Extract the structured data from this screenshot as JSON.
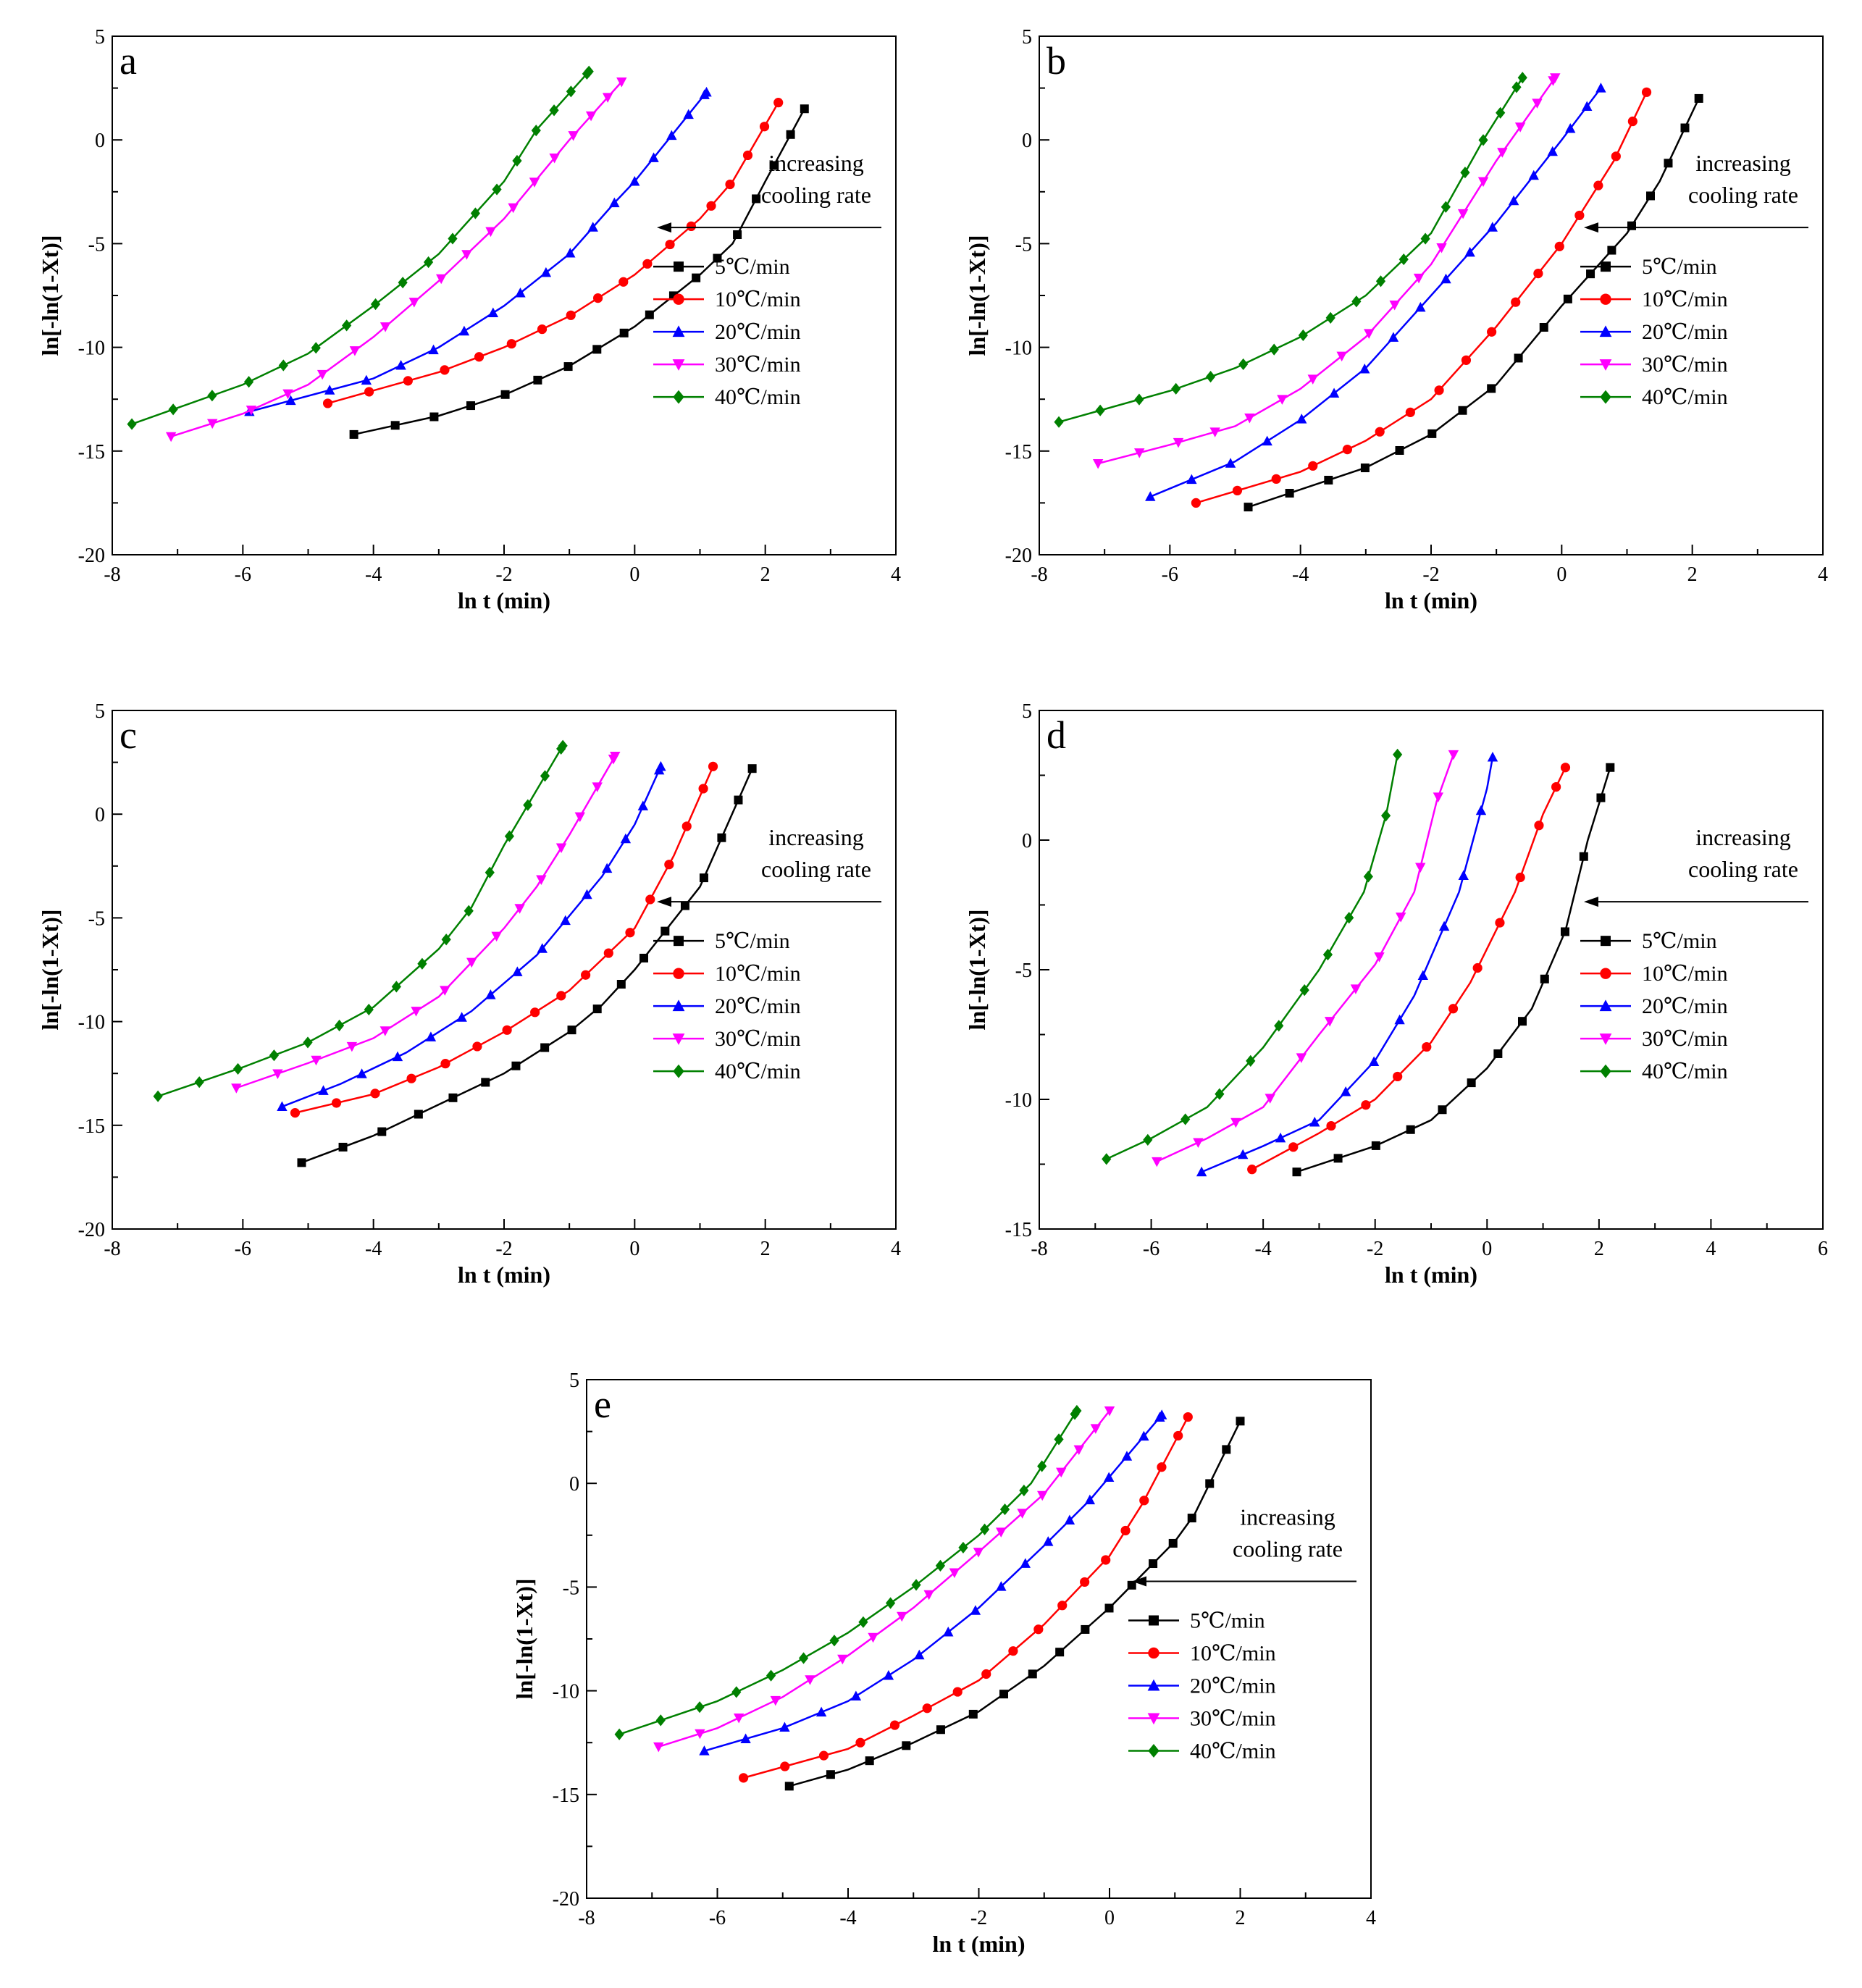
{
  "legend_labels": [
    "5℃/min",
    "10℃/min",
    "20℃/min",
    "30℃/min",
    "40℃/min"
  ],
  "annotation": [
    "increasing",
    "cooling rate"
  ],
  "colors": {
    "5": "#000000",
    "10": "#ff0000",
    "20": "#0000ff",
    "30": "#ff00ff",
    "40": "#008000"
  },
  "chart_data": [
    {
      "type": "scatter",
      "panel": "a",
      "xlabel": "ln t (min)",
      "ylabel": "ln[-ln(1-Xt)]",
      "xlim": [
        -8,
        4
      ],
      "ylim": [
        -20,
        5
      ],
      "xticks": [
        "-8",
        "-6",
        "-4",
        "-2",
        "0",
        "2",
        "4"
      ],
      "yticks": [
        "-20",
        "-15",
        "-10",
        "-5",
        "0",
        "5"
      ],
      "series": [
        {
          "name": "5℃/min",
          "marker": "square",
          "x": [
            -4.3,
            -3.0,
            -2.0,
            -1.0,
            0.0,
            1.0,
            1.5,
            2.0,
            2.6
          ],
          "y": [
            -14.2,
            -13.3,
            -12.3,
            -10.9,
            -9.0,
            -6.5,
            -5.0,
            -2.0,
            1.5
          ]
        },
        {
          "name": "10℃/min",
          "marker": "circle",
          "x": [
            -4.7,
            -3.0,
            -2.0,
            -1.0,
            0.0,
            1.0,
            1.5,
            2.2
          ],
          "y": [
            -12.7,
            -11.2,
            -10.0,
            -8.5,
            -6.5,
            -3.8,
            -2.0,
            1.8
          ]
        },
        {
          "name": "20℃/min",
          "marker": "triangle-up",
          "x": [
            -5.9,
            -4.0,
            -3.0,
            -2.0,
            -1.0,
            -0.3,
            0.0,
            1.1
          ],
          "y": [
            -13.1,
            -11.5,
            -10.0,
            -8.0,
            -5.5,
            -3.0,
            -2.0,
            2.3
          ]
        },
        {
          "name": "30℃/min",
          "marker": "triangle-down",
          "x": [
            -7.1,
            -6.0,
            -5.0,
            -4.0,
            -3.0,
            -2.0,
            -1.0,
            -0.2
          ],
          "y": [
            -14.3,
            -13.2,
            -11.8,
            -9.5,
            -6.8,
            -3.8,
            0.0,
            2.8
          ]
        },
        {
          "name": "40℃/min",
          "marker": "diamond",
          "x": [
            -7.7,
            -6.0,
            -5.0,
            -4.0,
            -3.0,
            -2.0,
            -1.5,
            -0.7
          ],
          "y": [
            -13.7,
            -11.8,
            -10.3,
            -8.0,
            -5.5,
            -2.0,
            0.5,
            3.3
          ]
        }
      ]
    },
    {
      "type": "scatter",
      "panel": "b",
      "xlabel": "ln t (min)",
      "ylabel": "ln[-ln(1-Xt)]",
      "xlim": [
        -8,
        4
      ],
      "ylim": [
        -20,
        5
      ],
      "xticks": [
        "-8",
        "-6",
        "-4",
        "-2",
        "0",
        "2",
        "4"
      ],
      "yticks": [
        "-20",
        "-15",
        "-10",
        "-5",
        "0",
        "5"
      ],
      "series": [
        {
          "name": "5℃/min",
          "marker": "square",
          "x": [
            -4.8,
            -3.0,
            -2.0,
            -1.0,
            0.0,
            1.0,
            1.5,
            2.1
          ],
          "y": [
            -17.7,
            -15.8,
            -14.2,
            -11.8,
            -8.0,
            -4.5,
            -2.0,
            2.0
          ]
        },
        {
          "name": "10℃/min",
          "marker": "circle",
          "x": [
            -5.6,
            -4.0,
            -3.0,
            -2.0,
            -1.0,
            0.0,
            0.8,
            1.3
          ],
          "y": [
            -17.5,
            -16.0,
            -14.5,
            -12.5,
            -9.0,
            -5.0,
            -1.0,
            2.3
          ]
        },
        {
          "name": "20℃/min",
          "marker": "triangle-up",
          "x": [
            -6.3,
            -5.0,
            -4.0,
            -3.0,
            -2.0,
            -1.0,
            0.0,
            0.6
          ],
          "y": [
            -17.2,
            -15.5,
            -13.5,
            -11.0,
            -7.5,
            -4.0,
            0.0,
            2.5
          ]
        },
        {
          "name": "30℃/min",
          "marker": "triangle-down",
          "x": [
            -7.1,
            -6.0,
            -5.0,
            -4.0,
            -3.0,
            -2.0,
            -1.0,
            -0.1
          ],
          "y": [
            -15.6,
            -14.7,
            -13.8,
            -12.0,
            -9.5,
            -6.0,
            -1.0,
            3.0
          ]
        },
        {
          "name": "40℃/min",
          "marker": "diamond",
          "x": [
            -7.7,
            -6.0,
            -5.0,
            -4.0,
            -3.0,
            -2.0,
            -1.2,
            -0.6
          ],
          "y": [
            -13.6,
            -12.1,
            -11.0,
            -9.5,
            -7.5,
            -4.5,
            0.0,
            3.0
          ]
        }
      ]
    },
    {
      "type": "scatter",
      "panel": "c",
      "xlabel": "ln t (min)",
      "ylabel": "ln[-ln(1-Xt)]",
      "xlim": [
        -8,
        4
      ],
      "ylim": [
        -20,
        5
      ],
      "xticks": [
        "-8",
        "-6",
        "-4",
        "-2",
        "0",
        "2",
        "4"
      ],
      "yticks": [
        "-20",
        "-15",
        "-10",
        "-5",
        "0",
        "5"
      ],
      "series": [
        {
          "name": "5℃/min",
          "marker": "square",
          "x": [
            -5.1,
            -4.0,
            -3.0,
            -2.0,
            -1.0,
            -0.5,
            0.0,
            1.0,
            1.8
          ],
          "y": [
            -16.8,
            -15.5,
            -14.0,
            -12.5,
            -10.5,
            -9.2,
            -7.5,
            -3.5,
            2.2
          ]
        },
        {
          "name": "10℃/min",
          "marker": "circle",
          "x": [
            -5.2,
            -4.0,
            -3.0,
            -2.0,
            -1.0,
            0.0,
            0.6,
            1.2
          ],
          "y": [
            -14.4,
            -13.5,
            -12.2,
            -10.5,
            -8.5,
            -5.5,
            -2.0,
            2.3
          ]
        },
        {
          "name": "20℃/min",
          "marker": "triangle-up",
          "x": [
            -5.4,
            -4.5,
            -3.5,
            -2.5,
            -1.5,
            -0.5,
            0.0,
            0.4
          ],
          "y": [
            -14.1,
            -13.0,
            -11.5,
            -9.5,
            -6.8,
            -3.0,
            -0.5,
            2.3
          ]
        },
        {
          "name": "30℃/min",
          "marker": "triangle-down",
          "x": [
            -6.1,
            -5.0,
            -4.0,
            -3.0,
            -2.0,
            -1.5,
            -1.0,
            -0.3
          ],
          "y": [
            -13.2,
            -12.0,
            -10.8,
            -8.8,
            -5.5,
            -3.5,
            -1.0,
            2.8
          ]
        },
        {
          "name": "40℃/min",
          "marker": "diamond",
          "x": [
            -7.3,
            -6.0,
            -5.0,
            -4.0,
            -3.0,
            -2.5,
            -2.0,
            -1.1
          ],
          "y": [
            -13.6,
            -12.2,
            -11.0,
            -9.3,
            -6.5,
            -4.5,
            -1.5,
            3.3
          ]
        }
      ]
    },
    {
      "type": "scatter",
      "panel": "d",
      "xlabel": "ln t (min)",
      "ylabel": "ln[-ln(1-Xt)]",
      "xlim": [
        -8,
        6
      ],
      "ylim": [
        -15,
        5
      ],
      "xticks": [
        "-8",
        "-6",
        "-4",
        "-2",
        "0",
        "2",
        "4",
        "6"
      ],
      "yticks": [
        "-15",
        "-10",
        "-5",
        "0",
        "5"
      ],
      "series": [
        {
          "name": "5℃/min",
          "marker": "square",
          "x": [
            -3.4,
            -2.0,
            -1.0,
            0.0,
            0.8,
            1.4,
            1.8,
            2.2
          ],
          "y": [
            -12.8,
            -11.8,
            -10.8,
            -8.8,
            -6.5,
            -3.5,
            0.0,
            2.8
          ]
        },
        {
          "name": "10℃/min",
          "marker": "circle",
          "x": [
            -4.2,
            -3.0,
            -2.0,
            -1.0,
            -0.3,
            0.5,
            1.0,
            1.4
          ],
          "y": [
            -12.7,
            -11.3,
            -10.0,
            -7.8,
            -5.5,
            -2.0,
            1.0,
            2.8
          ]
        },
        {
          "name": "20℃/min",
          "marker": "triangle-up",
          "x": [
            -5.1,
            -4.0,
            -3.0,
            -2.0,
            -1.3,
            -0.5,
            0.0,
            0.1
          ],
          "y": [
            -12.8,
            -11.8,
            -10.8,
            -8.5,
            -6.0,
            -2.0,
            2.0,
            3.2
          ]
        },
        {
          "name": "30℃/min",
          "marker": "triangle-down",
          "x": [
            -5.9,
            -5.0,
            -4.0,
            -3.0,
            -2.0,
            -1.3,
            -0.9,
            -0.6
          ],
          "y": [
            -12.4,
            -11.5,
            -10.3,
            -7.5,
            -4.8,
            -2.0,
            1.5,
            3.3
          ]
        },
        {
          "name": "40℃/min",
          "marker": "diamond",
          "x": [
            -6.8,
            -6.0,
            -5.0,
            -4.0,
            -3.0,
            -2.2,
            -1.8,
            -1.6
          ],
          "y": [
            -12.3,
            -11.5,
            -10.3,
            -8.0,
            -5.0,
            -2.0,
            1.0,
            3.3
          ]
        }
      ]
    },
    {
      "type": "scatter",
      "panel": "e",
      "xlabel": "ln t (min)",
      "ylabel": "ln[-ln(1-Xt)]",
      "xlim": [
        -8,
        4
      ],
      "ylim": [
        -20,
        5
      ],
      "xticks": [
        "-8",
        "-6",
        "-4",
        "-2",
        "0",
        "2",
        "4"
      ],
      "yticks": [
        "-20",
        "-15",
        "-10",
        "-5",
        "0",
        "5"
      ],
      "series": [
        {
          "name": "5℃/min",
          "marker": "square",
          "x": [
            -4.9,
            -4.0,
            -3.0,
            -2.0,
            -1.0,
            0.0,
            1.0,
            1.3,
            2.0
          ],
          "y": [
            -14.6,
            -13.8,
            -12.5,
            -11.0,
            -8.8,
            -6.0,
            -2.8,
            -1.5,
            3.0
          ]
        },
        {
          "name": "10℃/min",
          "marker": "circle",
          "x": [
            -5.6,
            -4.0,
            -3.0,
            -2.0,
            -1.0,
            0.0,
            0.5,
            1.2
          ],
          "y": [
            -14.2,
            -12.8,
            -11.2,
            -9.5,
            -6.8,
            -3.5,
            -1.0,
            3.2
          ]
        },
        {
          "name": "20℃/min",
          "marker": "triangle-up",
          "x": [
            -6.2,
            -5.0,
            -4.0,
            -3.0,
            -2.0,
            -1.0,
            -0.3,
            0.8
          ],
          "y": [
            -12.9,
            -11.8,
            -10.5,
            -8.5,
            -6.0,
            -3.0,
            -0.8,
            3.3
          ]
        },
        {
          "name": "30℃/min",
          "marker": "triangle-down",
          "x": [
            -6.9,
            -6.0,
            -5.0,
            -4.0,
            -3.0,
            -2.0,
            -1.0,
            0.0
          ],
          "y": [
            -12.7,
            -11.8,
            -10.3,
            -8.3,
            -6.0,
            -3.3,
            -0.5,
            3.5
          ]
        },
        {
          "name": "40℃/min",
          "marker": "diamond",
          "x": [
            -7.5,
            -6.0,
            -5.0,
            -4.0,
            -3.0,
            -2.0,
            -1.2,
            -0.5
          ],
          "y": [
            -12.1,
            -10.5,
            -9.0,
            -7.2,
            -5.0,
            -2.5,
            0.0,
            3.5
          ]
        }
      ]
    }
  ]
}
